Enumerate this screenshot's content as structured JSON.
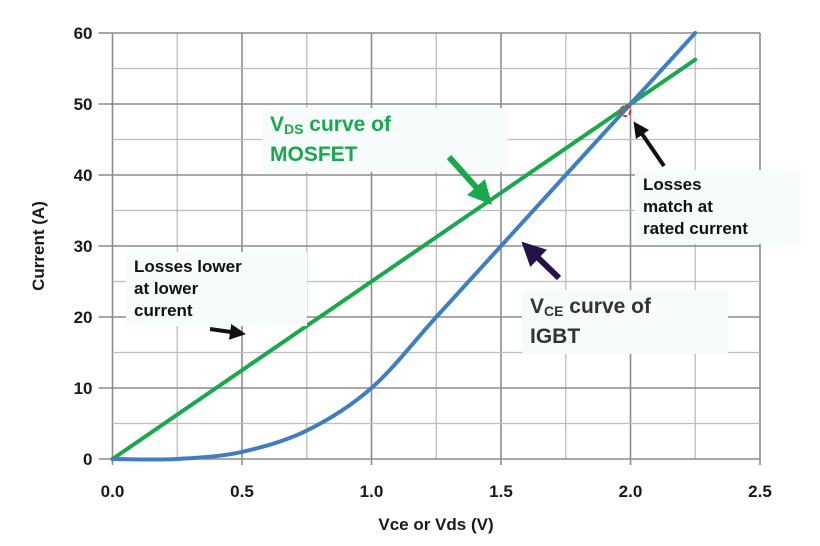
{
  "chart_data": {
    "type": "line",
    "xlabel": "Vce or Vds (V)",
    "ylabel": "Current (A)",
    "xlim": [
      0,
      2.5
    ],
    "ylim": [
      0,
      60
    ],
    "xticks": [
      "0.0",
      "0.5",
      "1.0",
      "1.5",
      "2.0",
      "2.5"
    ],
    "yticks": [
      "0",
      "10",
      "20",
      "30",
      "40",
      "50",
      "60"
    ],
    "grid": true,
    "series": [
      {
        "name": "MOSFET",
        "color": "#1aa84c",
        "x": [
          0,
          2.25
        ],
        "y": [
          0,
          56.25
        ]
      },
      {
        "name": "IGBT",
        "color": "#3f7fbf",
        "x": [
          0,
          0.25,
          0.5,
          0.75,
          1.0,
          1.25,
          1.5,
          1.75,
          2.0,
          2.25
        ],
        "y": [
          0,
          0,
          1,
          4,
          10,
          20,
          30,
          40,
          50,
          60
        ]
      }
    ],
    "annotations": {
      "mosfet_label_main": "V",
      "mosfet_label_sub": "DS",
      "mosfet_label_rest": " curve of",
      "mosfet_label_line2": "MOSFET",
      "igbt_label_main": "V",
      "igbt_label_sub": "CE",
      "igbt_label_rest": " curve of",
      "igbt_label_line2": "IGBT",
      "lower_losses": [
        "Losses lower",
        "at lower",
        "current"
      ],
      "match": [
        "Losses",
        "match at",
        "rated current"
      ],
      "intersection": {
        "x": 1.98,
        "y": 49
      }
    }
  }
}
